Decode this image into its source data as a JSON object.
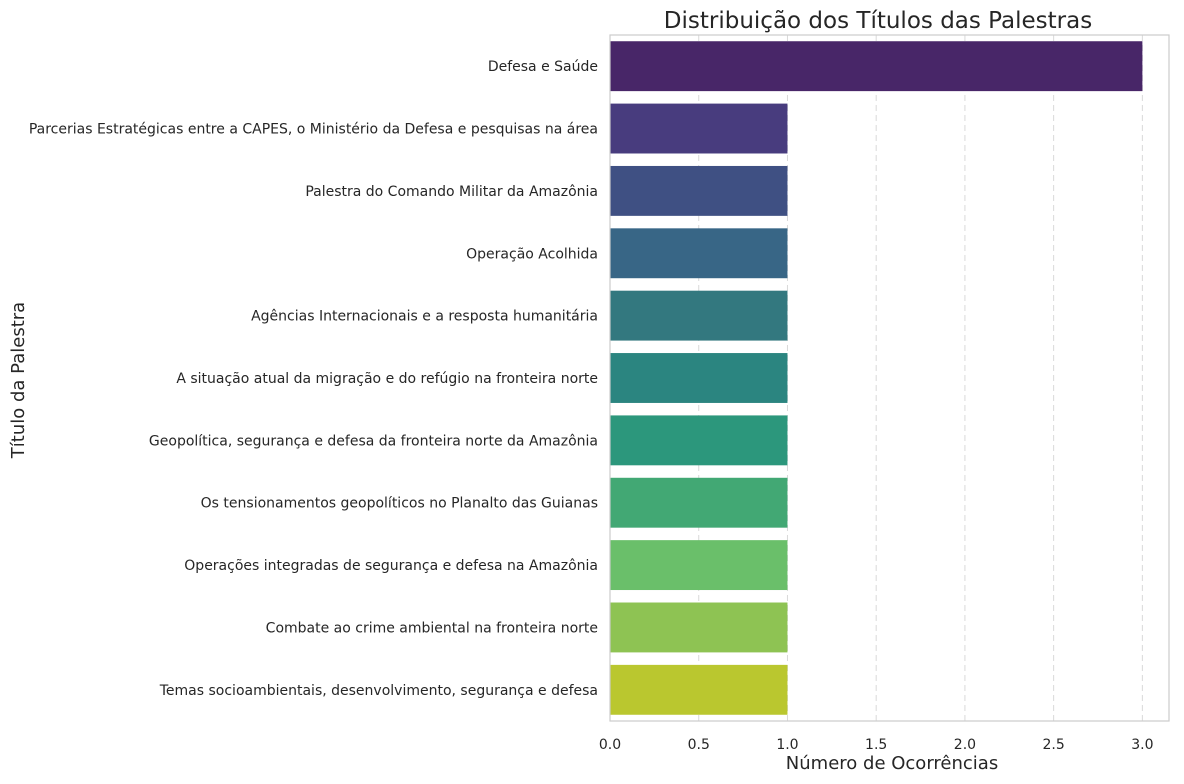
{
  "chart_data": {
    "type": "bar",
    "orientation": "horizontal",
    "title": "Distribuição dos Títulos das Palestras",
    "xlabel": "Número de Ocorrências",
    "ylabel": "Título da Palestra",
    "xlim": [
      0,
      3.15
    ],
    "xticks": [
      "0.0",
      "0.5",
      "1.0",
      "1.5",
      "2.0",
      "2.5",
      "3.0"
    ],
    "grid": "x-dashed",
    "categories": [
      "Defesa e Saúde",
      "Parcerias Estratégicas entre a CAPES, o Ministério da Defesa e pesquisas na área",
      "Palestra do Comando Militar da Amazônia",
      "Operação Acolhida",
      "Agências Internacionais e a resposta humanitária",
      "A situação atual da migração e do refúgio na fronteira norte",
      "Geopolítica, segurança e defesa da fronteira norte da Amazônia",
      "Os tensionamentos geopolíticos no Planalto das Guianas",
      "Operações integradas de segurança e defesa na Amazônia",
      "Combate ao crime ambiental na fronteira norte",
      "Temas socioambientais, desenvolvimento, segurança e defesa"
    ],
    "values": [
      3,
      1,
      1,
      1,
      1,
      1,
      1,
      1,
      1,
      1,
      1
    ],
    "colors": [
      "#482668",
      "#483C7E",
      "#3F5083",
      "#386686",
      "#33787F",
      "#2B8580",
      "#2C977C",
      "#42A874",
      "#6ABF6A",
      "#8EC353",
      "#BAC72F"
    ]
  }
}
